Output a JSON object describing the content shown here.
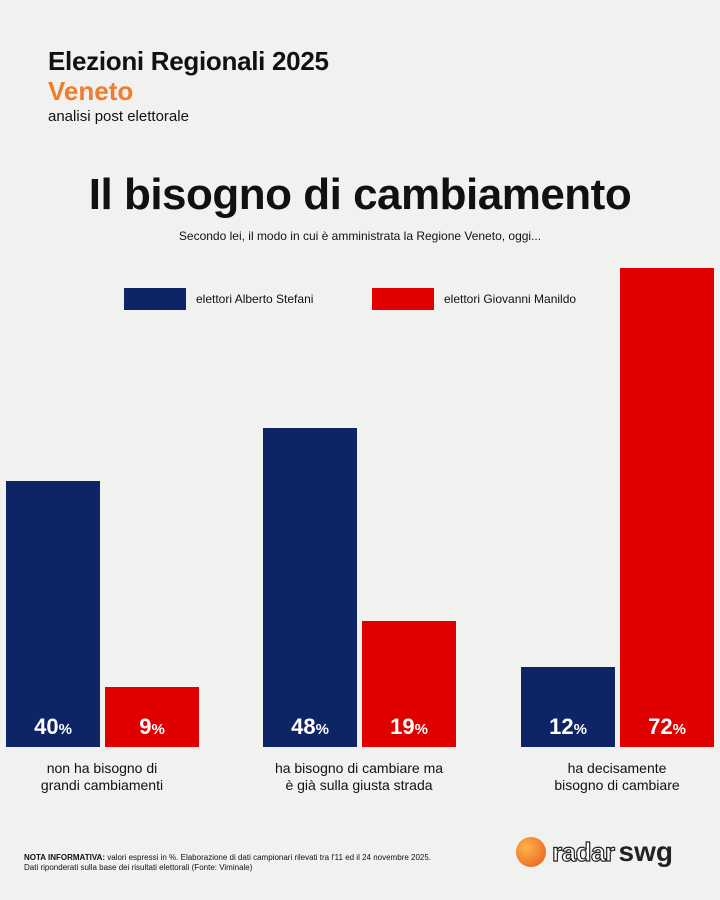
{
  "header": {
    "title": "Elezioni Regionali 2025",
    "region": "Veneto",
    "subtitle": "analisi post elettorale"
  },
  "chart_data": {
    "type": "bar",
    "title": "Il bisogno di cambiamento",
    "subtitle": "Secondo lei, il modo in cui è amministrata la Regione Veneto, oggi...",
    "categories": [
      "non ha bisogno di grandi cambiamenti",
      "ha bisogno di cambiare ma è già sulla giusta strada",
      "ha decisamente bisogno di cambiare"
    ],
    "category_lines": [
      [
        "non ha bisogno di",
        "grandi cambiamenti"
      ],
      [
        "ha bisogno di cambiare ma",
        "è già sulla giusta strada"
      ],
      [
        "ha decisamente",
        "bisogno di cambiare"
      ]
    ],
    "series": [
      {
        "name": "elettori Alberto Stefani",
        "color": "#0d2466",
        "values": [
          40,
          48,
          12
        ]
      },
      {
        "name": "elettori Giovanni Manildo",
        "color": "#e00000",
        "values": [
          9,
          19,
          72
        ]
      }
    ],
    "unit": "%",
    "legend": "top",
    "grid": false
  },
  "footer": {
    "note_bold": "NOTA INFORMATIVA:",
    "note": " valori espressi in %. Elaborazione di dati campionari rilevati tra l'11 ed il 24 novembre 2025.",
    "note2": "Dati riponderati sulla base dei risultati elettorali (Fonte: Viminale)",
    "logo_radar": "radar",
    "logo_swg": "swg"
  }
}
